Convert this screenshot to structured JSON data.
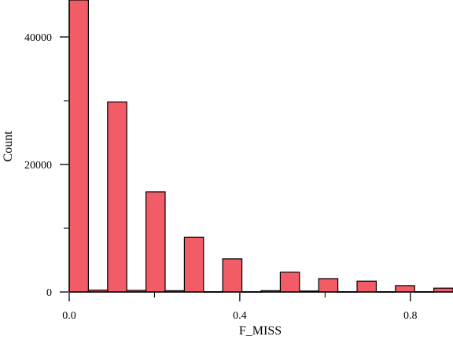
{
  "chart_data": {
    "type": "bar",
    "title": "",
    "xlabel": "F_MISS",
    "ylabel": "Count",
    "bin_width": 0.045,
    "bins": [
      {
        "x": 0.0,
        "value": 45800
      },
      {
        "x": 0.045,
        "value": 300
      },
      {
        "x": 0.09,
        "value": 29800
      },
      {
        "x": 0.135,
        "value": 250
      },
      {
        "x": 0.18,
        "value": 15700
      },
      {
        "x": 0.225,
        "value": 200
      },
      {
        "x": 0.27,
        "value": 8600
      },
      {
        "x": 0.315,
        "value": 50
      },
      {
        "x": 0.36,
        "value": 5200
      },
      {
        "x": 0.405,
        "value": 50
      },
      {
        "x": 0.45,
        "value": 200
      },
      {
        "x": 0.495,
        "value": 3100
      },
      {
        "x": 0.54,
        "value": 150
      },
      {
        "x": 0.585,
        "value": 2100
      },
      {
        "x": 0.63,
        "value": 50
      },
      {
        "x": 0.675,
        "value": 1700
      },
      {
        "x": 0.72,
        "value": 50
      },
      {
        "x": 0.765,
        "value": 1000
      },
      {
        "x": 0.81,
        "value": 50
      },
      {
        "x": 0.855,
        "value": 600
      }
    ],
    "xlim": [
      0,
      0.9
    ],
    "ylim": [
      0,
      45800
    ],
    "x_ticks": [
      0.0,
      0.4,
      0.8
    ],
    "x_tick_labels": [
      "0.0",
      "0.4",
      "0.8"
    ],
    "y_ticks": [
      0,
      20000,
      40000
    ],
    "y_tick_labels": [
      "0",
      "20000",
      "40000"
    ],
    "bar_color": "#f25c66",
    "grid": false,
    "legend": "none"
  }
}
